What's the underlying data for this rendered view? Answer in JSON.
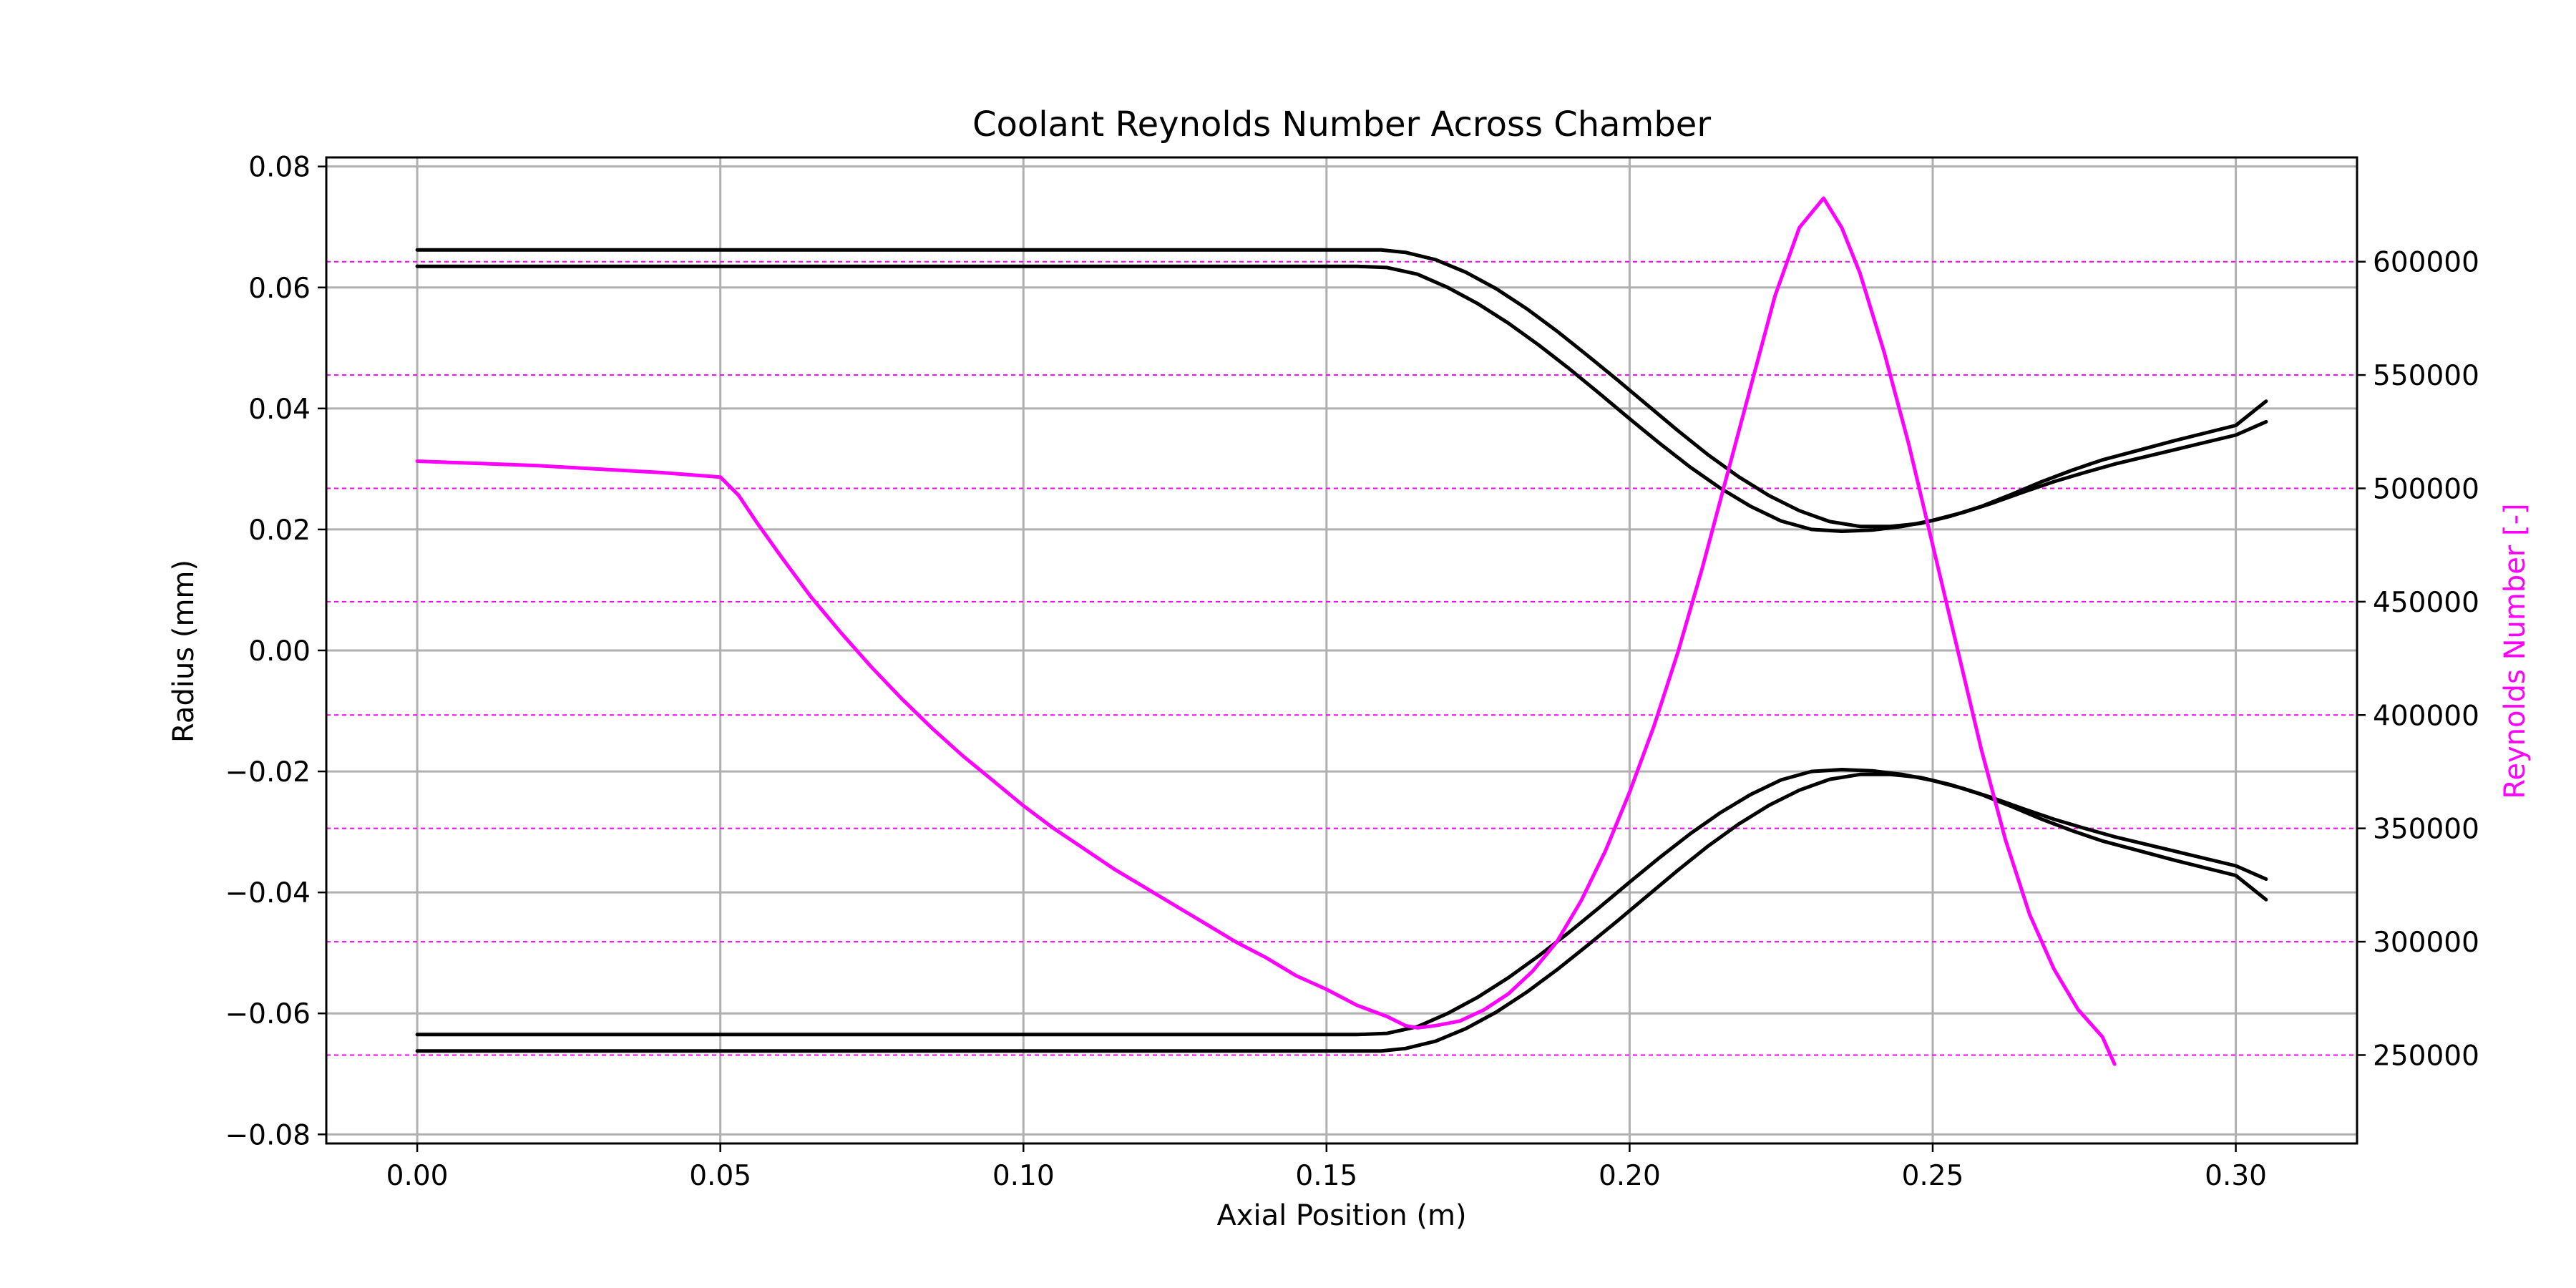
{
  "chart_data": {
    "type": "line",
    "title": "Coolant Reynolds Number Across Chamber",
    "xlabel": "Axial Position (m)",
    "ylabel": "Radius (mm)",
    "y2label": "Reynolds Number [-]",
    "xlim": [
      -0.015,
      0.32
    ],
    "ylim": [
      -0.0815,
      0.0815
    ],
    "y2lim": [
      211000,
      646000
    ],
    "x_ticks": [
      "0.00",
      "0.05",
      "0.10",
      "0.15",
      "0.20",
      "0.25",
      "0.30"
    ],
    "y_ticks": [
      "−0.08",
      "−0.06",
      "−0.04",
      "−0.02",
      "0.00",
      "0.02",
      "0.04",
      "0.06",
      "0.08"
    ],
    "y2_ticks": [
      "250000",
      "300000",
      "350000",
      "400000",
      "450000",
      "500000",
      "550000",
      "600000"
    ],
    "grid": true,
    "colors": {
      "contour": "#000000",
      "reynolds": "#ff00ff",
      "grid": "#b0b0b0"
    },
    "series": [
      {
        "axis": "left",
        "color": "#000000",
        "points": [
          [
            0.0,
            0.0635
          ],
          [
            0.155,
            0.0635
          ],
          [
            0.16,
            0.0633
          ],
          [
            0.165,
            0.0622
          ],
          [
            0.17,
            0.06
          ],
          [
            0.175,
            0.0573
          ],
          [
            0.18,
            0.0541
          ],
          [
            0.185,
            0.0505
          ],
          [
            0.19,
            0.0466
          ],
          [
            0.195,
            0.0425
          ],
          [
            0.2,
            0.0383
          ],
          [
            0.205,
            0.0342
          ],
          [
            0.21,
            0.0303
          ],
          [
            0.215,
            0.0268
          ],
          [
            0.22,
            0.0238
          ],
          [
            0.225,
            0.0214
          ],
          [
            0.23,
            0.02
          ],
          [
            0.235,
            0.0197
          ],
          [
            0.24,
            0.0199
          ],
          [
            0.245,
            0.0205
          ],
          [
            0.25,
            0.0215
          ],
          [
            0.255,
            0.0228
          ],
          [
            0.26,
            0.0244
          ],
          [
            0.265,
            0.0262
          ],
          [
            0.27,
            0.0279
          ],
          [
            0.275,
            0.0294
          ],
          [
            0.28,
            0.0308
          ],
          [
            0.29,
            0.0332
          ],
          [
            0.3,
            0.0356
          ],
          [
            0.305,
            0.0378
          ]
        ]
      },
      {
        "axis": "left",
        "color": "#000000",
        "points": [
          [
            0.0,
            0.0662
          ],
          [
            0.159,
            0.0662
          ],
          [
            0.163,
            0.0658
          ],
          [
            0.168,
            0.0646
          ],
          [
            0.173,
            0.0625
          ],
          [
            0.178,
            0.0598
          ],
          [
            0.183,
            0.0565
          ],
          [
            0.188,
            0.0528
          ],
          [
            0.193,
            0.0488
          ],
          [
            0.198,
            0.0447
          ],
          [
            0.203,
            0.0405
          ],
          [
            0.208,
            0.0363
          ],
          [
            0.213,
            0.0323
          ],
          [
            0.218,
            0.0287
          ],
          [
            0.223,
            0.0256
          ],
          [
            0.228,
            0.0231
          ],
          [
            0.233,
            0.0213
          ],
          [
            0.238,
            0.0205
          ],
          [
            0.243,
            0.0205
          ],
          [
            0.248,
            0.021
          ],
          [
            0.253,
            0.0222
          ],
          [
            0.258,
            0.0238
          ],
          [
            0.263,
            0.0258
          ],
          [
            0.268,
            0.0279
          ],
          [
            0.273,
            0.0298
          ],
          [
            0.278,
            0.0315
          ],
          [
            0.284,
            0.0331
          ],
          [
            0.29,
            0.0347
          ],
          [
            0.3,
            0.0372
          ],
          [
            0.305,
            0.0412
          ]
        ]
      },
      {
        "axis": "left",
        "color": "#000000",
        "points": [
          [
            0.0,
            -0.0635
          ],
          [
            0.155,
            -0.0635
          ],
          [
            0.16,
            -0.0633
          ],
          [
            0.165,
            -0.0622
          ],
          [
            0.17,
            -0.06
          ],
          [
            0.175,
            -0.0573
          ],
          [
            0.18,
            -0.0541
          ],
          [
            0.185,
            -0.0505
          ],
          [
            0.19,
            -0.0466
          ],
          [
            0.195,
            -0.0425
          ],
          [
            0.2,
            -0.0383
          ],
          [
            0.205,
            -0.0342
          ],
          [
            0.21,
            -0.0303
          ],
          [
            0.215,
            -0.0268
          ],
          [
            0.22,
            -0.0238
          ],
          [
            0.225,
            -0.0214
          ],
          [
            0.23,
            -0.02
          ],
          [
            0.235,
            -0.0197
          ],
          [
            0.24,
            -0.0199
          ],
          [
            0.245,
            -0.0205
          ],
          [
            0.25,
            -0.0215
          ],
          [
            0.255,
            -0.0228
          ],
          [
            0.26,
            -0.0244
          ],
          [
            0.265,
            -0.0262
          ],
          [
            0.27,
            -0.0279
          ],
          [
            0.275,
            -0.0294
          ],
          [
            0.28,
            -0.0308
          ],
          [
            0.29,
            -0.0332
          ],
          [
            0.3,
            -0.0356
          ],
          [
            0.305,
            -0.0378
          ]
        ]
      },
      {
        "axis": "left",
        "color": "#000000",
        "points": [
          [
            0.0,
            -0.0662
          ],
          [
            0.159,
            -0.0662
          ],
          [
            0.163,
            -0.0658
          ],
          [
            0.168,
            -0.0646
          ],
          [
            0.173,
            -0.0625
          ],
          [
            0.178,
            -0.0598
          ],
          [
            0.183,
            -0.0565
          ],
          [
            0.188,
            -0.0528
          ],
          [
            0.193,
            -0.0488
          ],
          [
            0.198,
            -0.0447
          ],
          [
            0.203,
            -0.0405
          ],
          [
            0.208,
            -0.0363
          ],
          [
            0.213,
            -0.0323
          ],
          [
            0.218,
            -0.0287
          ],
          [
            0.223,
            -0.0256
          ],
          [
            0.228,
            -0.0231
          ],
          [
            0.233,
            -0.0213
          ],
          [
            0.238,
            -0.0205
          ],
          [
            0.243,
            -0.0205
          ],
          [
            0.248,
            -0.021
          ],
          [
            0.253,
            -0.0222
          ],
          [
            0.258,
            -0.0238
          ],
          [
            0.263,
            -0.0258
          ],
          [
            0.268,
            -0.0279
          ],
          [
            0.273,
            -0.0298
          ],
          [
            0.278,
            -0.0315
          ],
          [
            0.284,
            -0.0331
          ],
          [
            0.29,
            -0.0347
          ],
          [
            0.3,
            -0.0372
          ],
          [
            0.305,
            -0.0412
          ]
        ]
      },
      {
        "axis": "right",
        "color": "#ff00ff",
        "points": [
          [
            0.0,
            512000
          ],
          [
            0.02,
            510000
          ],
          [
            0.04,
            507000
          ],
          [
            0.05,
            505000
          ],
          [
            0.053,
            497000
          ],
          [
            0.056,
            485000
          ],
          [
            0.06,
            470000
          ],
          [
            0.065,
            452000
          ],
          [
            0.07,
            436000
          ],
          [
            0.075,
            421000
          ],
          [
            0.08,
            407000
          ],
          [
            0.085,
            394000
          ],
          [
            0.09,
            382000
          ],
          [
            0.095,
            371000
          ],
          [
            0.1,
            360000
          ],
          [
            0.105,
            350000
          ],
          [
            0.11,
            341000
          ],
          [
            0.115,
            332000
          ],
          [
            0.12,
            324000
          ],
          [
            0.125,
            316000
          ],
          [
            0.13,
            308000
          ],
          [
            0.135,
            300000
          ],
          [
            0.14,
            293000
          ],
          [
            0.145,
            285000
          ],
          [
            0.15,
            279000
          ],
          [
            0.155,
            272000
          ],
          [
            0.16,
            267000
          ],
          [
            0.163,
            263000
          ],
          [
            0.165,
            262000
          ],
          [
            0.168,
            263000
          ],
          [
            0.172,
            265000
          ],
          [
            0.176,
            270000
          ],
          [
            0.18,
            277000
          ],
          [
            0.184,
            287000
          ],
          [
            0.188,
            300000
          ],
          [
            0.192,
            318000
          ],
          [
            0.196,
            340000
          ],
          [
            0.2,
            366000
          ],
          [
            0.204,
            395000
          ],
          [
            0.208,
            428000
          ],
          [
            0.212,
            465000
          ],
          [
            0.216,
            505000
          ],
          [
            0.22,
            545000
          ],
          [
            0.224,
            585000
          ],
          [
            0.228,
            615000
          ],
          [
            0.232,
            628000
          ],
          [
            0.235,
            615000
          ],
          [
            0.238,
            595000
          ],
          [
            0.242,
            560000
          ],
          [
            0.246,
            520000
          ],
          [
            0.25,
            475000
          ],
          [
            0.254,
            430000
          ],
          [
            0.258,
            385000
          ],
          [
            0.262,
            345000
          ],
          [
            0.266,
            312000
          ],
          [
            0.27,
            288000
          ],
          [
            0.274,
            270000
          ],
          [
            0.278,
            258000
          ],
          [
            0.28,
            246000
          ]
        ]
      }
    ]
  }
}
